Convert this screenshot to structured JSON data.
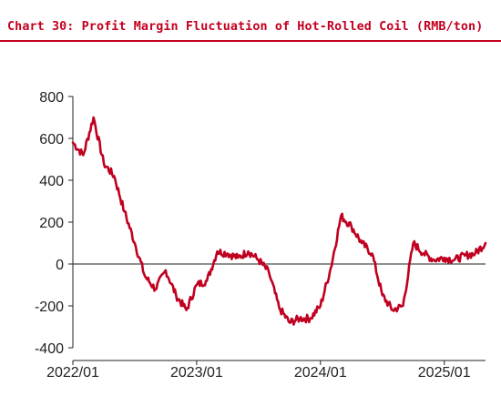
{
  "title": "Chart 30: Profit Margin Fluctuation of Hot-Rolled Coil (RMB/ton)",
  "chart_data": {
    "type": "line",
    "title": "Chart 30: Profit Margin Fluctuation of Hot-Rolled Coil (RMB/ton)",
    "ylim": [
      -400,
      800
    ],
    "yticks": [
      800,
      600,
      400,
      200,
      0,
      -200,
      -400
    ],
    "xlim": [
      "2022-01",
      "2025-05"
    ],
    "xticks": [
      "2022/01",
      "2023/01",
      "2024/01",
      "2025/01"
    ],
    "grid": false,
    "legend": "none",
    "series": [
      {
        "color": "#c00020",
        "x": [
          "2022-01",
          "2022-02",
          "2022-03",
          "2022-04",
          "2022-05",
          "2022-06",
          "2022-07",
          "2022-08",
          "2022-09",
          "2022-10",
          "2022-11",
          "2022-12",
          "2023-01",
          "2023-02",
          "2023-03",
          "2023-04",
          "2023-05",
          "2023-06",
          "2023-07",
          "2023-08",
          "2023-09",
          "2023-10",
          "2023-11",
          "2023-12",
          "2024-01",
          "2024-02",
          "2024-03",
          "2024-04",
          "2024-05",
          "2024-06",
          "2024-07",
          "2024-08",
          "2024-09",
          "2024-10",
          "2024-11",
          "2024-12",
          "2025-01",
          "2025-02",
          "2025-03",
          "2025-04",
          "2025-05"
        ],
        "values": [
          580,
          520,
          700,
          480,
          420,
          250,
          100,
          -60,
          -120,
          -30,
          -150,
          -220,
          -100,
          -80,
          60,
          50,
          30,
          60,
          20,
          -40,
          -210,
          -280,
          -260,
          -260,
          -200,
          -20,
          230,
          180,
          100,
          50,
          -150,
          -220,
          -200,
          100,
          50,
          20,
          30,
          20,
          40,
          50,
          100
        ]
      }
    ]
  }
}
